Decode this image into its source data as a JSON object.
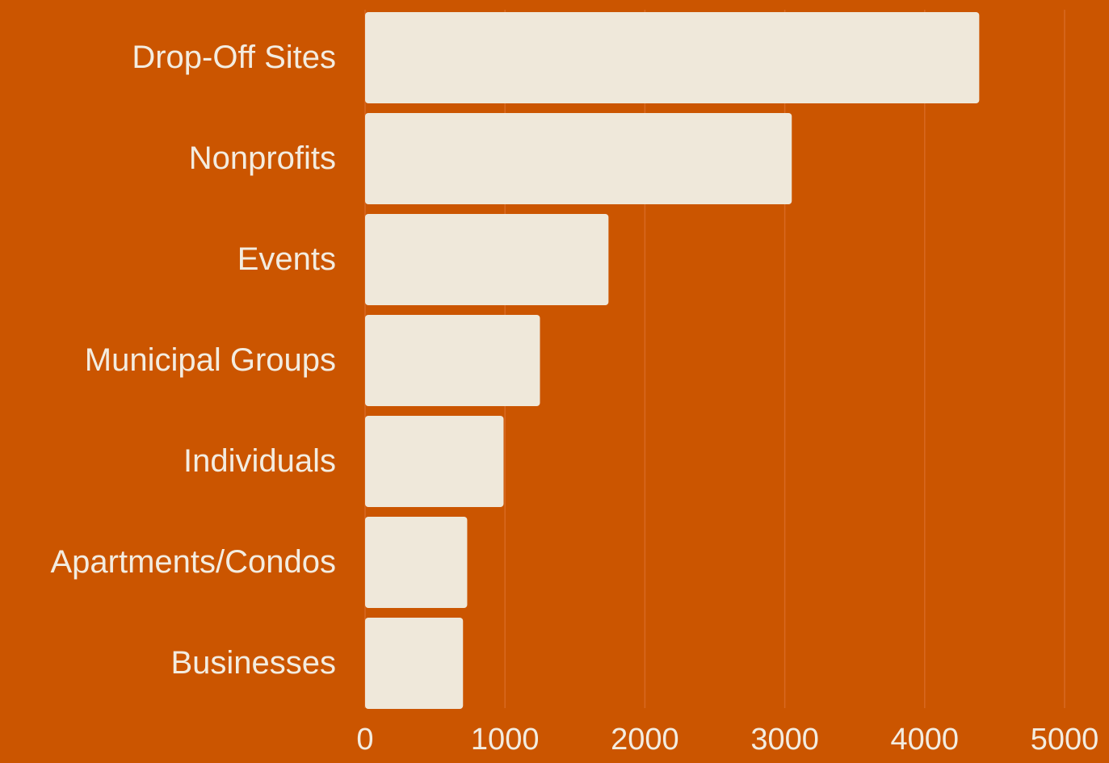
{
  "chart_data": {
    "type": "bar",
    "orientation": "horizontal",
    "categories": [
      "Drop-Off Sites",
      "Nonprofits",
      "Events",
      "Municipal Groups",
      "Individuals",
      "Apartments/Condos",
      "Businesses"
    ],
    "values": [
      4390,
      3050,
      1740,
      1250,
      990,
      730,
      700
    ],
    "color": "#efe8da",
    "xlim": [
      0,
      5000
    ],
    "xticks": [
      0,
      1000,
      2000,
      3000,
      4000,
      5000
    ],
    "grid": true
  }
}
